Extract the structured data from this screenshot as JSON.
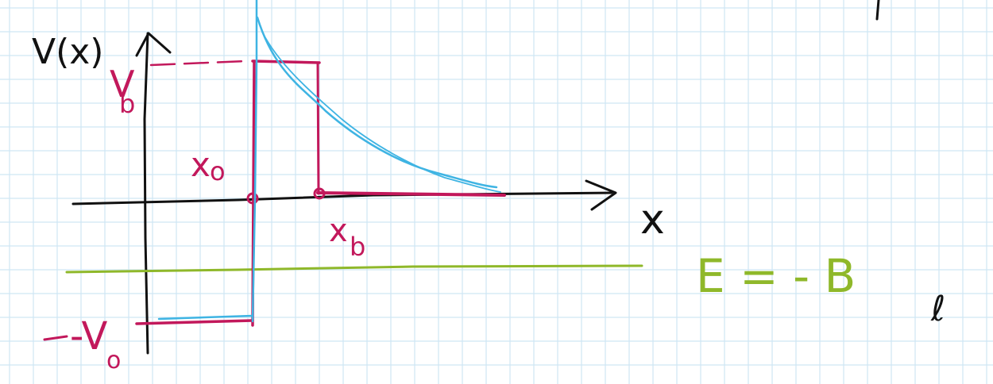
{
  "colors": {
    "grid": "#cfe7f4",
    "axis": "#111111",
    "potential": "#c2185b",
    "wavefunction": "#3fb4e3",
    "energy": "#8fb82a"
  },
  "labels": {
    "y_axis": "V(x)",
    "x_axis": "x",
    "vb": "V",
    "vb_sub": "b",
    "x0": "x",
    "x0_sub": "o",
    "xb": "x",
    "xb_sub": "b",
    "minus_v0": "-V",
    "minus_v0_sub": "o",
    "energy": "E = - B",
    "energy_sub": "ℓ"
  }
}
